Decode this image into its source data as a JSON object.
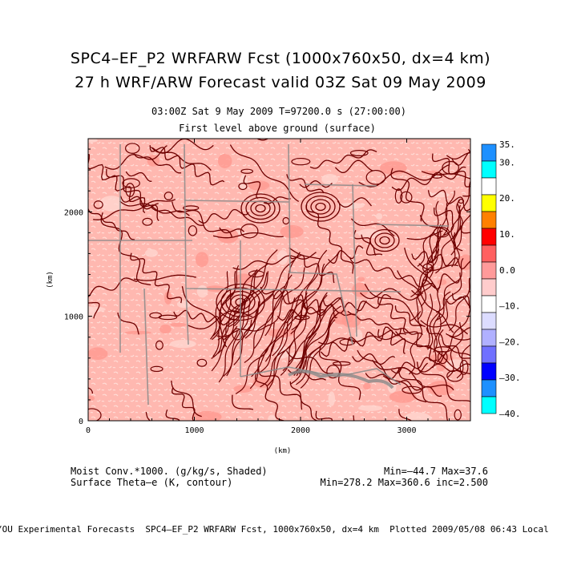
{
  "header": {
    "title_line1": "SPC4–EF_P2 WRFARW Fcst (1000x760x50, dx=4 km)",
    "title_line2": "27 h WRF/ARW Forecast valid 03Z Sat 09 May 2009",
    "subtitle_line1": "03:00Z Sat  9 May 2009    T=97200.0 s (27:00:00)",
    "subtitle_line2": "First level above ground (surface)"
  },
  "legend": {
    "shaded_label": "Moist Conv.*1000. (g/kg/s, Shaded)",
    "contour_label": "Surface Theta–e (K, contour)",
    "shaded_range": "Min=–44.7 Max=37.6",
    "contour_range": "Min=278.2 Max=360.6 inc=2.500"
  },
  "footer": {
    "text": "/OU Experimental Forecasts  SPC4–EF_P2 WRFARW Fcst, 1000x760x50, dx=4 km  Plotted 2009/05/08 06:43 Local"
  },
  "chart_data": {
    "type": "heatmap",
    "title": "27 h WRF/ARW Forecast valid 03Z Sat 09 May 2009",
    "xlabel": "(km)",
    "ylabel": "(km)",
    "xlim": [
      0,
      3600
    ],
    "ylim": [
      0,
      2700
    ],
    "x_ticks": [
      0,
      1000,
      2000,
      3000
    ],
    "x_tick_labels": [
      "0",
      "1000",
      "2000",
      "3000"
    ],
    "y_ticks": [
      0,
      1000,
      2000
    ],
    "y_tick_labels": [
      "0",
      "1000",
      "2000"
    ],
    "field_shaded": "Moist Conv.*1000. (g/kg/s, Shaded)",
    "field_contour": "Surface Theta–e (K, contour)",
    "shaded_min": -44.7,
    "shaded_max": 37.6,
    "contour_min": 278.2,
    "contour_max": 360.6,
    "contour_interval": 2.5,
    "colorbar": {
      "levels": [
        -40,
        -35,
        -30,
        -25,
        -20,
        -15,
        -10,
        -5,
        0,
        5,
        10,
        15,
        20,
        25,
        30,
        35
      ],
      "tick_labels": [
        "35.",
        "30.",
        "20.",
        "10.",
        "0.0",
        "–10.",
        "–20.",
        "–30.",
        "–40."
      ],
      "tick_values": [
        35,
        30,
        20,
        10,
        0,
        -10,
        -20,
        -30,
        -40
      ],
      "colors_top_to_bottom": [
        "#1e90ff",
        "#00ffff",
        "#ffffff",
        "#ffff00",
        "#ff8000",
        "#ff0000",
        "#ff6060",
        "#ff9a9a",
        "#ffcccc",
        "#ffffff",
        "#dcdcff",
        "#b0b0ff",
        "#7070ff",
        "#0000ff",
        "#1e90ff",
        "#00ffff"
      ]
    },
    "background_shade_color": "#ffb8b0",
    "contour_color": "#6e0000",
    "boundary_color": "#8a8a8a"
  }
}
